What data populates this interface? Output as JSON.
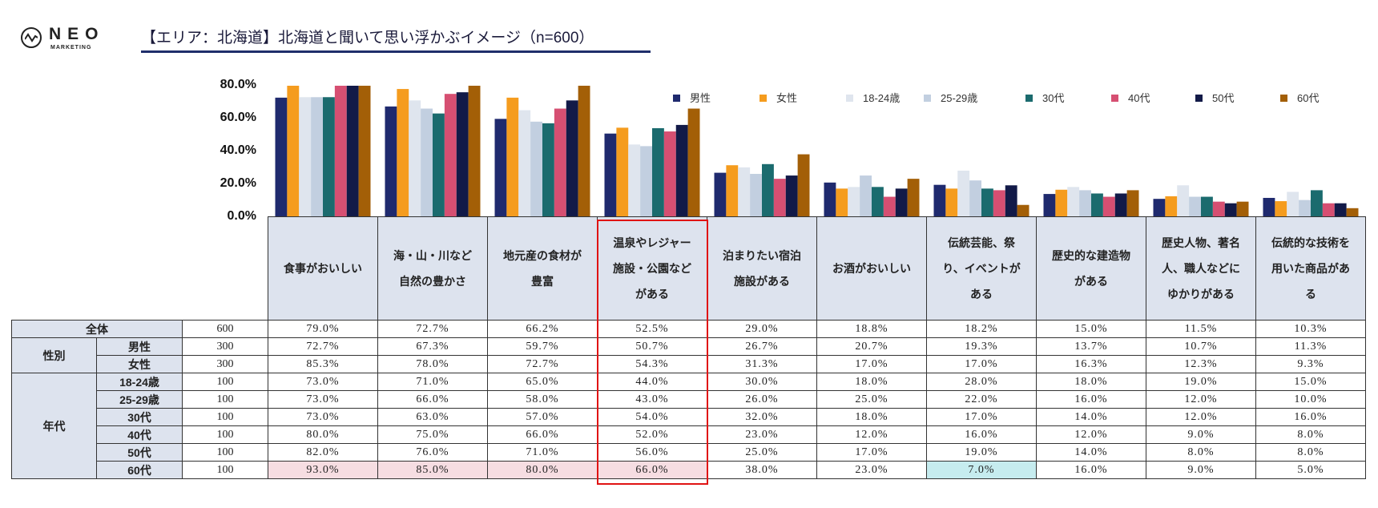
{
  "logo": {
    "name": "NEO",
    "sub": "MARKETING"
  },
  "title": "【エリア：北海道】北海道と聞いて思い浮かぶイメージ（n=600）",
  "table": {
    "row_groups": [
      {
        "group": "全体",
        "rows": [
          {
            "label": "",
            "n": "600"
          }
        ]
      },
      {
        "group": "性別",
        "rows": [
          {
            "label": "男性",
            "n": "300"
          },
          {
            "label": "女性",
            "n": "300"
          }
        ]
      },
      {
        "group": "年代",
        "rows": [
          {
            "label": "18-24歳",
            "n": "100"
          },
          {
            "label": "25-29歳",
            "n": "100"
          },
          {
            "label": "30代",
            "n": "100"
          },
          {
            "label": "40代",
            "n": "100"
          },
          {
            "label": "50代",
            "n": "100"
          },
          {
            "label": "60代",
            "n": "100"
          }
        ]
      }
    ],
    "columns": [
      "食事がおいしい",
      "海・山・川など\n自然の豊かさ",
      "地元産の食材が\n豊富",
      "温泉やレジャー\n施設・公園など\nがある",
      "泊まりたい宿泊\n施設がある",
      "お酒がおいしい",
      "伝統芸能、祭\nり、イベントが\nある",
      "歴史的な建造物\nがある",
      "歴史人物、著名\n人、職人などに\nゆかりがある",
      "伝統的な技術を\n用いた商品があ\nる"
    ],
    "rows": [
      [
        "79.0%",
        "72.7%",
        "66.2%",
        "52.5%",
        "29.0%",
        "18.8%",
        "18.2%",
        "15.0%",
        "11.5%",
        "10.3%"
      ],
      [
        "72.7%",
        "67.3%",
        "59.7%",
        "50.7%",
        "26.7%",
        "20.7%",
        "19.3%",
        "13.7%",
        "10.7%",
        "11.3%"
      ],
      [
        "85.3%",
        "78.0%",
        "72.7%",
        "54.3%",
        "31.3%",
        "17.0%",
        "17.0%",
        "16.3%",
        "12.3%",
        "9.3%"
      ],
      [
        "73.0%",
        "71.0%",
        "65.0%",
        "44.0%",
        "30.0%",
        "18.0%",
        "28.0%",
        "18.0%",
        "19.0%",
        "15.0%"
      ],
      [
        "73.0%",
        "66.0%",
        "58.0%",
        "43.0%",
        "26.0%",
        "25.0%",
        "22.0%",
        "16.0%",
        "12.0%",
        "10.0%"
      ],
      [
        "73.0%",
        "63.0%",
        "57.0%",
        "54.0%",
        "32.0%",
        "18.0%",
        "17.0%",
        "14.0%",
        "12.0%",
        "16.0%"
      ],
      [
        "80.0%",
        "75.0%",
        "66.0%",
        "52.0%",
        "23.0%",
        "12.0%",
        "16.0%",
        "12.0%",
        "9.0%",
        "8.0%"
      ],
      [
        "82.0%",
        "76.0%",
        "71.0%",
        "56.0%",
        "25.0%",
        "17.0%",
        "19.0%",
        "14.0%",
        "8.0%",
        "8.0%"
      ],
      [
        "93.0%",
        "85.0%",
        "80.0%",
        "66.0%",
        "38.0%",
        "23.0%",
        "7.0%",
        "16.0%",
        "9.0%",
        "5.0%"
      ]
    ],
    "highlights": [
      {
        "row": 8,
        "col": 0,
        "type": "high"
      },
      {
        "row": 8,
        "col": 1,
        "type": "high"
      },
      {
        "row": 8,
        "col": 2,
        "type": "high"
      },
      {
        "row": 8,
        "col": 3,
        "type": "high"
      },
      {
        "row": 8,
        "col": 6,
        "type": "low"
      }
    ],
    "highlight_colors": {
      "high": "#f6dde2",
      "low": "#c6ecef"
    },
    "boxed_column": 3,
    "box_color": "#e01414"
  },
  "chart_data": {
    "type": "bar",
    "title": "【エリア：北海道】北海道と聞いて思い浮かぶイメージ（n=600）",
    "xlabel": "",
    "ylabel": "",
    "ylim": [
      0,
      80
    ],
    "yticks": [
      "0.0%",
      "20.0%",
      "40.0%",
      "60.0%",
      "80.0%"
    ],
    "grid": false,
    "legend_position": "top-right",
    "categories": [
      "食事がおいしい",
      "海・山・川など自然の豊かさ",
      "地元産の食材が豊富",
      "温泉やレジャー施設・公園などがある",
      "泊まりたい宿泊施設がある",
      "お酒がおいしい",
      "伝統芸能、祭り、イベントがある",
      "歴史的な建造物がある",
      "歴史人物、著名人、職人などにゆかりがある",
      "伝統的な技術を用いた商品がある"
    ],
    "series": [
      {
        "name": "男性",
        "color": "#1f2a6e",
        "values": [
          72.7,
          67.3,
          59.7,
          50.7,
          26.7,
          20.7,
          19.3,
          13.7,
          10.7,
          11.3
        ]
      },
      {
        "name": "女性",
        "color": "#f59c1e",
        "values": [
          85.3,
          78.0,
          72.7,
          54.3,
          31.3,
          17.0,
          17.0,
          16.3,
          12.3,
          9.3
        ]
      },
      {
        "name": "18-24歳",
        "color": "#dfe5ee",
        "values": [
          73.0,
          71.0,
          65.0,
          44.0,
          30.0,
          18.0,
          28.0,
          18.0,
          19.0,
          15.0
        ]
      },
      {
        "name": "25-29歳",
        "color": "#c2cfe0",
        "values": [
          73.0,
          66.0,
          58.0,
          43.0,
          26.0,
          25.0,
          22.0,
          16.0,
          12.0,
          10.0
        ]
      },
      {
        "name": "30代",
        "color": "#1b6b6e",
        "values": [
          73.0,
          63.0,
          57.0,
          54.0,
          32.0,
          18.0,
          17.0,
          14.0,
          12.0,
          16.0
        ]
      },
      {
        "name": "40代",
        "color": "#d64f72",
        "values": [
          80.0,
          75.0,
          66.0,
          52.0,
          23.0,
          12.0,
          16.0,
          12.0,
          9.0,
          8.0
        ]
      },
      {
        "name": "50代",
        "color": "#121a48",
        "values": [
          82.0,
          76.0,
          71.0,
          56.0,
          25.0,
          17.0,
          19.0,
          14.0,
          8.0,
          8.0
        ]
      },
      {
        "name": "60代",
        "color": "#a35f07",
        "values": [
          93.0,
          85.0,
          80.0,
          66.0,
          38.0,
          23.0,
          7.0,
          16.0,
          9.0,
          5.0
        ]
      }
    ]
  }
}
